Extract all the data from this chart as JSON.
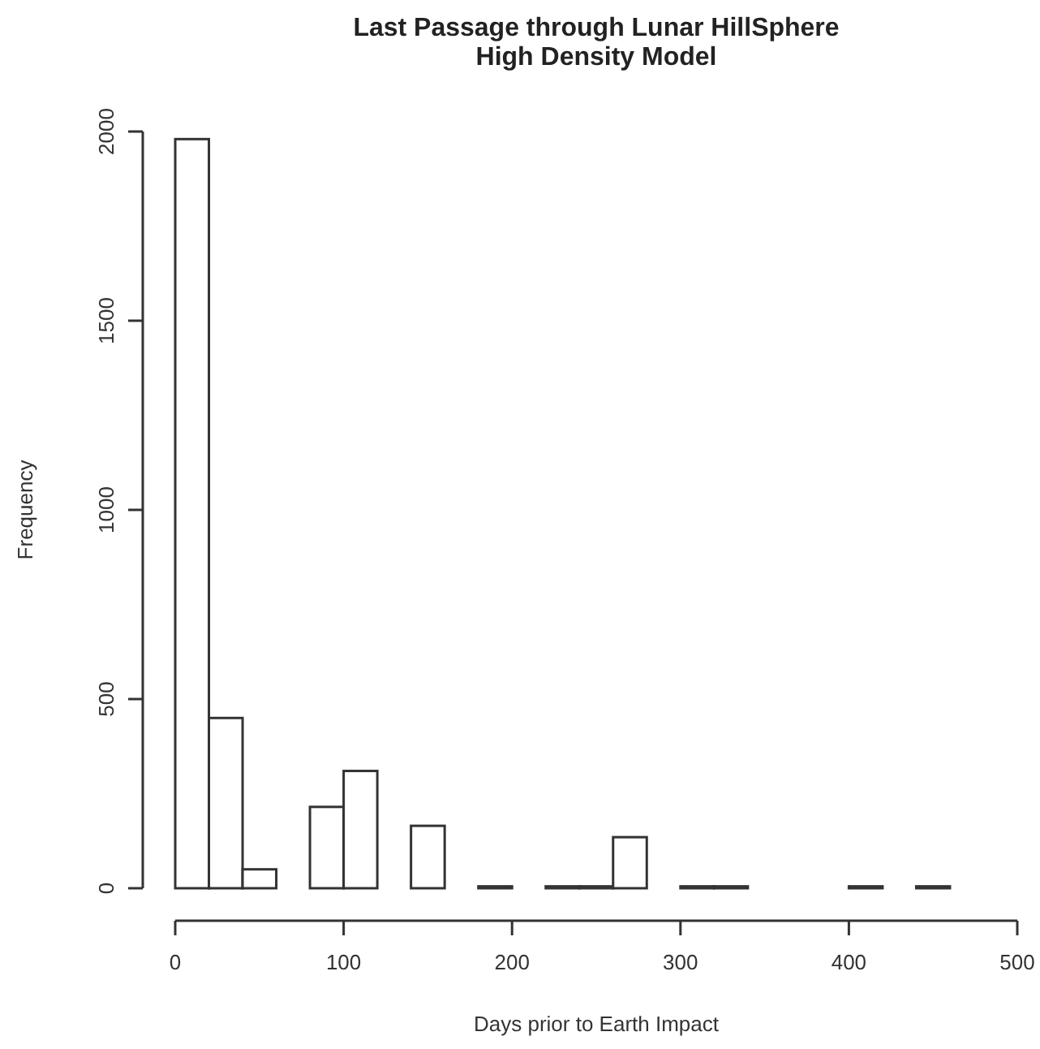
{
  "chart_data": {
    "type": "histogram",
    "title": "Last Passage through Lunar HillSphere\nHigh Density Model",
    "xlabel": "Days prior to Earth Impact",
    "ylabel": "Frequency",
    "bins": [
      0,
      20,
      40,
      60,
      80,
      100,
      120,
      140,
      160,
      180,
      200,
      220,
      240,
      260,
      280,
      300,
      320,
      340,
      360,
      380,
      400,
      420,
      440,
      460,
      480,
      500
    ],
    "values": [
      1980,
      450,
      50,
      0,
      215,
      310,
      0,
      165,
      0,
      5,
      0,
      5,
      5,
      135,
      0,
      5,
      5,
      0,
      0,
      0,
      5,
      0,
      5,
      0,
      0
    ],
    "color": "#ffffff",
    "xlim": [
      0,
      500
    ],
    "xticks": [
      0,
      100,
      200,
      300,
      400,
      500
    ],
    "ylim": [
      0,
      2000
    ],
    "yticks": [
      0,
      500,
      1000,
      1500,
      2000
    ]
  }
}
